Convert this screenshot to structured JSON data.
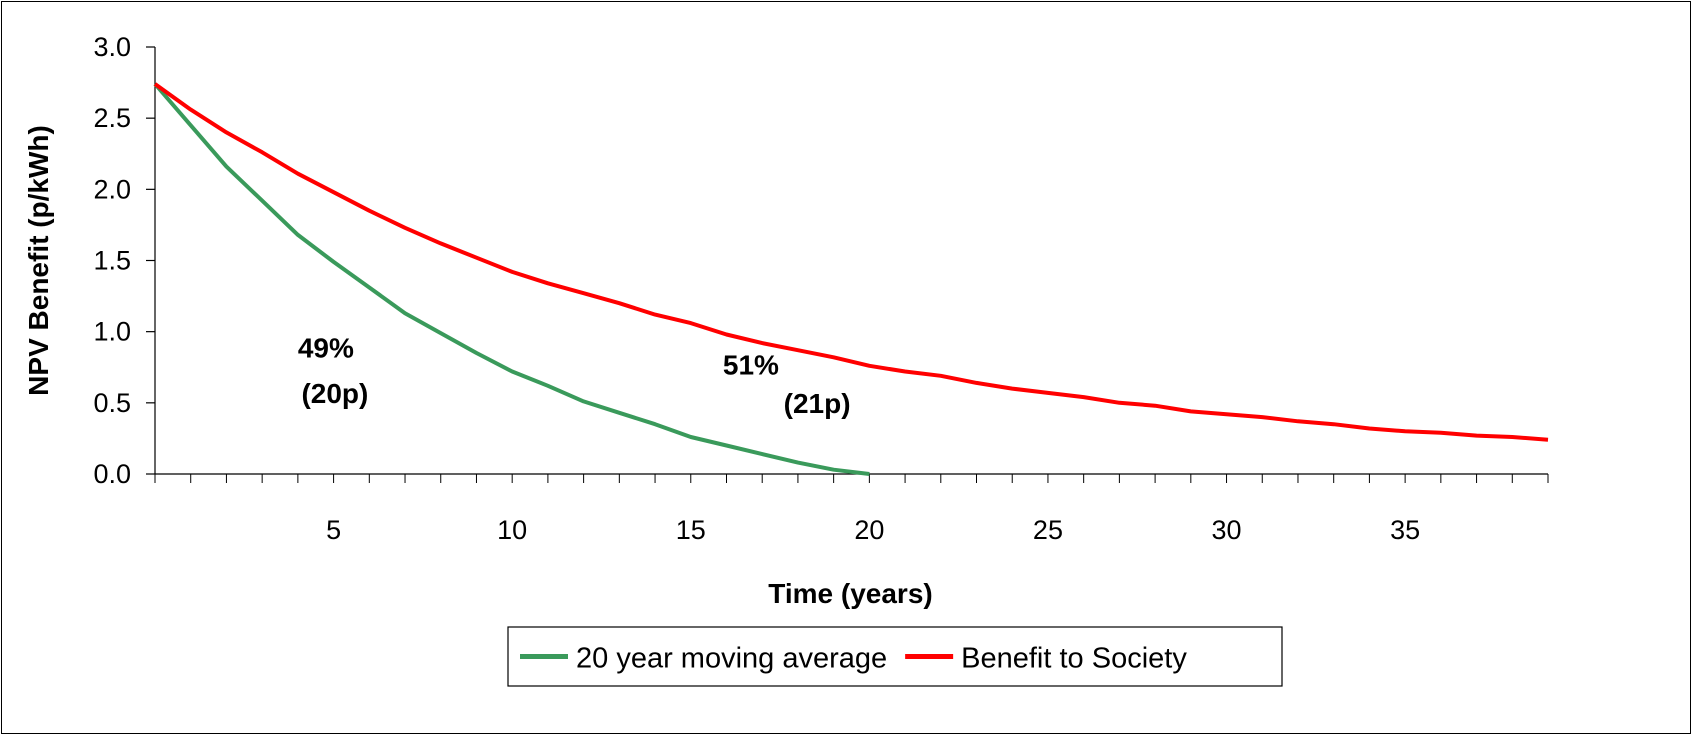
{
  "chart_data": {
    "type": "line",
    "xlabel": "Time (years)",
    "ylabel": "NPV Benefit (p/kWh)",
    "xlim": [
      0,
      39
    ],
    "ylim": [
      0,
      3.0
    ],
    "x_ticks": [
      5,
      10,
      15,
      20,
      25,
      30,
      35
    ],
    "y_ticks": [
      "0.0",
      "0.5",
      "1.0",
      "1.5",
      "2.0",
      "2.5",
      "3.0"
    ],
    "grid": false,
    "legend_position": "bottom-center",
    "series": [
      {
        "name": "20 year moving average",
        "color": "#3a9a5b",
        "x": [
          0,
          1,
          2,
          3,
          4,
          5,
          6,
          7,
          8,
          9,
          10,
          11,
          12,
          13,
          14,
          15,
          16,
          17,
          18,
          19,
          20
        ],
        "y": [
          2.74,
          2.45,
          2.16,
          1.92,
          1.68,
          1.49,
          1.31,
          1.13,
          0.99,
          0.85,
          0.72,
          0.62,
          0.51,
          0.43,
          0.35,
          0.26,
          0.2,
          0.14,
          0.08,
          0.03,
          0.0
        ]
      },
      {
        "name": "Benefit to Society",
        "color": "#ff0000",
        "x": [
          0,
          1,
          2,
          3,
          4,
          5,
          6,
          7,
          8,
          9,
          10,
          11,
          12,
          13,
          14,
          15,
          16,
          17,
          18,
          19,
          20,
          21,
          22,
          23,
          24,
          25,
          26,
          27,
          28,
          29,
          30,
          31,
          32,
          33,
          34,
          35,
          36,
          37,
          38,
          39
        ],
        "y": [
          2.74,
          2.56,
          2.4,
          2.26,
          2.11,
          1.98,
          1.85,
          1.73,
          1.62,
          1.52,
          1.42,
          1.34,
          1.27,
          1.2,
          1.12,
          1.06,
          0.98,
          0.92,
          0.87,
          0.82,
          0.76,
          0.72,
          0.69,
          0.64,
          0.6,
          0.57,
          0.54,
          0.5,
          0.48,
          0.44,
          0.42,
          0.4,
          0.37,
          0.35,
          0.32,
          0.3,
          0.29,
          0.27,
          0.26,
          0.24
        ]
      }
    ],
    "annotations": [
      {
        "text": "49%",
        "x": 4.0,
        "y": 0.82
      },
      {
        "text": "(20p)",
        "x": 4.1,
        "y": 0.5
      },
      {
        "text": "51%",
        "x": 15.9,
        "y": 0.7
      },
      {
        "text": "(21p)",
        "x": 17.6,
        "y": 0.43
      }
    ]
  }
}
